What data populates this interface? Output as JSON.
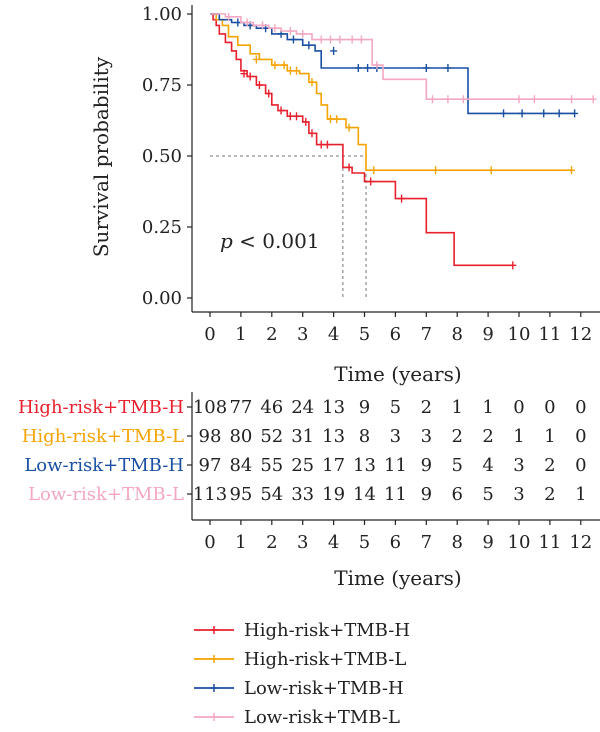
{
  "chart_data": {
    "type": "line",
    "subtype": "kaplan-meier",
    "title": "",
    "xlabel": "Time (years)",
    "ylabel": "Survival probability",
    "xlim": [
      -0.5,
      12.7
    ],
    "ylim": [
      -0.05,
      1.03
    ],
    "xticks": [
      "0",
      "1",
      "2",
      "3",
      "4",
      "5",
      "6",
      "7",
      "8",
      "9",
      "10",
      "11",
      "12"
    ],
    "yticks": [
      "0.00",
      "0.25",
      "0.50",
      "0.75",
      "1.00"
    ],
    "annotation": {
      "p_italic": "p",
      "p_rest": " < 0.001"
    },
    "median_lines": [
      {
        "series": "High-risk+TMB-H",
        "time": 4.3
      },
      {
        "series": "High-risk+TMB-L",
        "time": 5.05
      }
    ],
    "series": [
      {
        "name": "High-risk+TMB-H",
        "color": "#e8202e",
        "steps": [
          [
            0,
            1.0
          ],
          [
            0.1,
            0.98
          ],
          [
            0.2,
            0.96
          ],
          [
            0.3,
            0.93
          ],
          [
            0.5,
            0.9
          ],
          [
            0.7,
            0.87
          ],
          [
            0.85,
            0.84
          ],
          [
            1.0,
            0.8
          ],
          [
            1.2,
            0.78
          ],
          [
            1.5,
            0.75
          ],
          [
            1.8,
            0.72
          ],
          [
            2.0,
            0.68
          ],
          [
            2.2,
            0.66
          ],
          [
            2.5,
            0.64
          ],
          [
            3.0,
            0.62
          ],
          [
            3.2,
            0.58
          ],
          [
            3.45,
            0.54
          ],
          [
            4.3,
            0.46
          ],
          [
            4.6,
            0.44
          ],
          [
            5.0,
            0.41
          ],
          [
            5.8,
            0.41
          ],
          [
            6.0,
            0.35
          ],
          [
            6.9,
            0.35
          ],
          [
            7.0,
            0.23
          ],
          [
            7.8,
            0.23
          ],
          [
            7.9,
            0.115
          ],
          [
            9.8,
            0.115
          ]
        ],
        "censors": [
          [
            1.1,
            0.79
          ],
          [
            1.3,
            0.78
          ],
          [
            1.6,
            0.75
          ],
          [
            1.9,
            0.72
          ],
          [
            2.3,
            0.66
          ],
          [
            2.6,
            0.64
          ],
          [
            2.8,
            0.64
          ],
          [
            3.1,
            0.62
          ],
          [
            3.3,
            0.58
          ],
          [
            3.6,
            0.54
          ],
          [
            3.8,
            0.54
          ],
          [
            4.5,
            0.46
          ],
          [
            5.2,
            0.41
          ],
          [
            6.2,
            0.35
          ],
          [
            9.8,
            0.115
          ]
        ]
      },
      {
        "name": "High-risk+TMB-L",
        "color": "#f5a300",
        "steps": [
          [
            0,
            1.0
          ],
          [
            0.2,
            0.98
          ],
          [
            0.4,
            0.96
          ],
          [
            0.6,
            0.92
          ],
          [
            0.9,
            0.89
          ],
          [
            1.3,
            0.86
          ],
          [
            1.6,
            0.84
          ],
          [
            2.0,
            0.82
          ],
          [
            2.3,
            0.82
          ],
          [
            2.5,
            0.8
          ],
          [
            2.9,
            0.79
          ],
          [
            3.2,
            0.76
          ],
          [
            3.45,
            0.72
          ],
          [
            3.6,
            0.68
          ],
          [
            3.8,
            0.63
          ],
          [
            4.4,
            0.6
          ],
          [
            4.8,
            0.54
          ],
          [
            5.05,
            0.45
          ],
          [
            11.7,
            0.45
          ]
        ],
        "censors": [
          [
            1.5,
            0.84
          ],
          [
            2.1,
            0.82
          ],
          [
            2.4,
            0.82
          ],
          [
            2.6,
            0.8
          ],
          [
            2.8,
            0.8
          ],
          [
            3.3,
            0.76
          ],
          [
            3.9,
            0.63
          ],
          [
            4.1,
            0.63
          ],
          [
            4.5,
            0.6
          ],
          [
            5.3,
            0.45
          ],
          [
            7.3,
            0.45
          ],
          [
            9.1,
            0.45
          ],
          [
            11.7,
            0.45
          ]
        ]
      },
      {
        "name": "Low-risk+TMB-H",
        "color": "#1a4fa3",
        "steps": [
          [
            0,
            1.0
          ],
          [
            0.3,
            0.98
          ],
          [
            0.7,
            0.97
          ],
          [
            1.1,
            0.96
          ],
          [
            1.5,
            0.95
          ],
          [
            2.0,
            0.93
          ],
          [
            2.5,
            0.91
          ],
          [
            3.0,
            0.89
          ],
          [
            3.4,
            0.87
          ],
          [
            3.6,
            0.81
          ],
          [
            8.3,
            0.81
          ],
          [
            8.35,
            0.65
          ],
          [
            11.8,
            0.65
          ]
        ],
        "censors": [
          [
            0.9,
            0.97
          ],
          [
            1.3,
            0.96
          ],
          [
            1.8,
            0.95
          ],
          [
            2.3,
            0.93
          ],
          [
            2.7,
            0.91
          ],
          [
            3.2,
            0.89
          ],
          [
            4.0,
            0.87
          ],
          [
            4.8,
            0.81
          ],
          [
            5.1,
            0.81
          ],
          [
            5.4,
            0.81
          ],
          [
            7.0,
            0.81
          ],
          [
            7.7,
            0.81
          ],
          [
            9.5,
            0.65
          ],
          [
            10.1,
            0.65
          ],
          [
            10.8,
            0.65
          ],
          [
            11.3,
            0.65
          ],
          [
            11.8,
            0.65
          ]
        ]
      },
      {
        "name": "Low-risk+TMB-L",
        "color": "#f4a7c1",
        "steps": [
          [
            0,
            1.0
          ],
          [
            0.5,
            0.99
          ],
          [
            1.0,
            0.97
          ],
          [
            1.4,
            0.96
          ],
          [
            1.9,
            0.95
          ],
          [
            2.3,
            0.94
          ],
          [
            2.8,
            0.93
          ],
          [
            3.3,
            0.91
          ],
          [
            5.2,
            0.91
          ],
          [
            5.25,
            0.82
          ],
          [
            5.6,
            0.77
          ],
          [
            6.8,
            0.77
          ],
          [
            7.0,
            0.7
          ],
          [
            12.4,
            0.7
          ]
        ],
        "censors": [
          [
            0.6,
            0.99
          ],
          [
            1.2,
            0.97
          ],
          [
            1.7,
            0.96
          ],
          [
            2.1,
            0.95
          ],
          [
            2.6,
            0.94
          ],
          [
            3.0,
            0.93
          ],
          [
            3.6,
            0.91
          ],
          [
            3.9,
            0.91
          ],
          [
            4.2,
            0.91
          ],
          [
            4.6,
            0.91
          ],
          [
            4.9,
            0.91
          ],
          [
            5.4,
            0.82
          ],
          [
            7.2,
            0.7
          ],
          [
            7.7,
            0.7
          ],
          [
            8.2,
            0.7
          ],
          [
            10.0,
            0.7
          ],
          [
            10.5,
            0.7
          ],
          [
            11.7,
            0.7
          ],
          [
            12.4,
            0.7
          ]
        ]
      }
    ],
    "risk_table": {
      "xlabel": "Time (years)",
      "times": [
        "0",
        "1",
        "2",
        "3",
        "4",
        "5",
        "6",
        "7",
        "8",
        "9",
        "10",
        "11",
        "12"
      ],
      "rows": [
        {
          "name": "High-risk+TMB-H",
          "color": "#e8202e",
          "values": [
            "108",
            "77",
            "46",
            "24",
            "13",
            "9",
            "5",
            "2",
            "1",
            "1",
            "0",
            "0",
            "0"
          ]
        },
        {
          "name": "High-risk+TMB-L",
          "color": "#f5a300",
          "values": [
            "98",
            "80",
            "52",
            "31",
            "13",
            "8",
            "3",
            "3",
            "2",
            "2",
            "1",
            "1",
            "0"
          ]
        },
        {
          "name": "Low-risk+TMB-H",
          "color": "#1a4fa3",
          "values": [
            "97",
            "84",
            "55",
            "25",
            "17",
            "13",
            "11",
            "9",
            "5",
            "4",
            "3",
            "2",
            "0"
          ]
        },
        {
          "name": "Low-risk+TMB-L",
          "color": "#f4a7c1",
          "values": [
            "113",
            "95",
            "54",
            "33",
            "19",
            "14",
            "11",
            "9",
            "6",
            "5",
            "3",
            "2",
            "1"
          ]
        }
      ]
    },
    "legend": {
      "position": "bottom",
      "entries": [
        {
          "name": "High-risk+TMB-H",
          "color": "#e8202e"
        },
        {
          "name": "High-risk+TMB-L",
          "color": "#f5a300"
        },
        {
          "name": "Low-risk+TMB-H",
          "color": "#1a4fa3"
        },
        {
          "name": "Low-risk+TMB-L",
          "color": "#f4a7c1"
        }
      ]
    }
  }
}
